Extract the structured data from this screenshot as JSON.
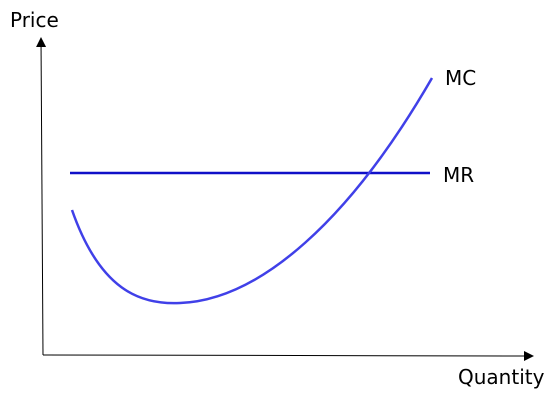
{
  "axes": {
    "y_label": "Price",
    "x_label": "Quantity"
  },
  "curves": [
    {
      "label": "MC"
    },
    {
      "label": "MR"
    }
  ]
}
